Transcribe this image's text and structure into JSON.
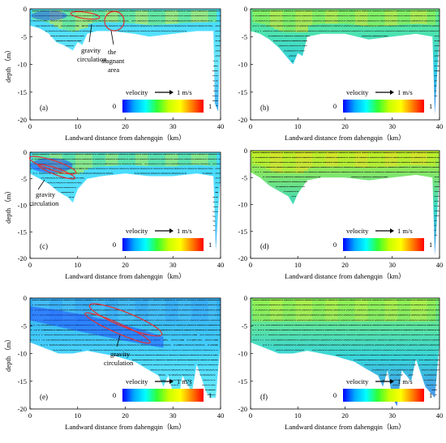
{
  "colors": {
    "colorbar_stops": [
      "#0000ff",
      "#00a8ff",
      "#00ffff",
      "#33ff33",
      "#c8ff00",
      "#ffff00",
      "#ff8000",
      "#ff0000"
    ],
    "ellipse_color": "#e53030",
    "arrow_color": "#000000"
  },
  "chart_data": [
    {
      "type": "heatmap",
      "panel": "(a)",
      "xlabel": "Landward distance from dahengqin（km）",
      "ylabel": "depth （m）",
      "xlim": [
        0,
        40
      ],
      "ylim": [
        -20,
        0
      ],
      "xticks": [
        "0",
        "10",
        "20",
        "30",
        "40"
      ],
      "yticks": [
        "0",
        "-5",
        "-10",
        "-15",
        "-20"
      ],
      "colorbar": {
        "label": "velocity",
        "min": "0",
        "max": "1",
        "arrow_label": "1 m/s"
      },
      "annotations": [
        "gravity circulation",
        "the stagnant area"
      ],
      "bottom_depth": [
        [
          0,
          -3
        ],
        [
          2,
          -3.5
        ],
        [
          4,
          -4.5
        ],
        [
          5.5,
          -6
        ],
        [
          7,
          -6.5
        ],
        [
          8,
          -7
        ],
        [
          9,
          -7.5
        ],
        [
          10,
          -6
        ],
        [
          11,
          -6.5
        ],
        [
          12,
          -4.5
        ],
        [
          14,
          -4
        ],
        [
          17,
          -4
        ],
        [
          22,
          -4.5
        ],
        [
          25,
          -5
        ],
        [
          30,
          -4.5
        ],
        [
          35,
          -4
        ],
        [
          38.5,
          -4
        ],
        [
          38.8,
          -17
        ],
        [
          39.5,
          -18.5
        ],
        [
          40,
          -3
        ]
      ]
    },
    {
      "type": "heatmap",
      "panel": "(b)",
      "xlabel": "Landward distance from dahengqin（km）",
      "ylabel": "",
      "xlim": [
        0,
        40
      ],
      "ylim": [
        -20,
        0
      ],
      "xticks": [
        "0",
        "10",
        "20",
        "30",
        "40"
      ],
      "yticks": [
        "0",
        "-5",
        "-10",
        "-15",
        "-20"
      ],
      "colorbar": {
        "label": "velocity",
        "min": "0",
        "max": "1",
        "arrow_label": "1 m/s"
      },
      "annotations": [],
      "bottom_depth": [
        [
          0,
          -4
        ],
        [
          2,
          -4.5
        ],
        [
          4,
          -5.5
        ],
        [
          6,
          -7
        ],
        [
          8,
          -9
        ],
        [
          9,
          -10
        ],
        [
          10,
          -8
        ],
        [
          11,
          -8.5
        ],
        [
          12,
          -5
        ],
        [
          15,
          -4.5
        ],
        [
          20,
          -4.5
        ],
        [
          25,
          -5.5
        ],
        [
          30,
          -5
        ],
        [
          35,
          -4.5
        ],
        [
          38.5,
          -5
        ],
        [
          39,
          -19
        ],
        [
          40,
          -4
        ]
      ]
    },
    {
      "type": "heatmap",
      "panel": "(c)",
      "xlabel": "Landward distance from dahengqin（km）",
      "ylabel": "depth （m）",
      "xlim": [
        0,
        40
      ],
      "ylim": [
        -20,
        0
      ],
      "xticks": [
        "0",
        "10",
        "20",
        "30",
        "40"
      ],
      "yticks": [
        "0",
        "-5",
        "-10",
        "-15",
        "-20"
      ],
      "colorbar": {
        "label": "velocity",
        "min": "0",
        "max": "1",
        "arrow_label": "1 m/s"
      },
      "annotations": [
        "gravity circulation"
      ],
      "bottom_depth": [
        [
          0,
          -4
        ],
        [
          2,
          -5
        ],
        [
          4,
          -6
        ],
        [
          6,
          -7.5
        ],
        [
          8,
          -8.5
        ],
        [
          9,
          -9.5
        ],
        [
          10,
          -7
        ],
        [
          12,
          -5
        ],
        [
          15,
          -4.5
        ],
        [
          20,
          -4
        ],
        [
          25,
          -4.5
        ],
        [
          30,
          -4.5
        ],
        [
          35,
          -4
        ],
        [
          38.5,
          -4.5
        ],
        [
          39,
          -18.5
        ],
        [
          40,
          -4
        ]
      ]
    },
    {
      "type": "heatmap",
      "panel": "(d)",
      "xlabel": "Landward distance from dahengqin（km）",
      "ylabel": "",
      "xlim": [
        0,
        40
      ],
      "ylim": [
        -20,
        0
      ],
      "xticks": [
        "0",
        "10",
        "20",
        "30",
        "40"
      ],
      "yticks": [
        "0",
        "-5",
        "-10",
        "-15",
        "-20"
      ],
      "colorbar": {
        "label": "velocity",
        "min": "0",
        "max": "1",
        "arrow_label": "1 m/s"
      },
      "annotations": [],
      "bottom_depth": [
        [
          0,
          -4
        ],
        [
          2,
          -5
        ],
        [
          4,
          -6.5
        ],
        [
          6,
          -7.5
        ],
        [
          8,
          -8.5
        ],
        [
          9,
          -10
        ],
        [
          10,
          -8
        ],
        [
          12,
          -5.5
        ],
        [
          15,
          -5
        ],
        [
          20,
          -5
        ],
        [
          25,
          -5.5
        ],
        [
          30,
          -5
        ],
        [
          35,
          -4.5
        ],
        [
          38.5,
          -5
        ],
        [
          39,
          -19.5
        ],
        [
          40,
          -4
        ]
      ]
    },
    {
      "type": "heatmap",
      "panel": "(e)",
      "xlabel": "Landward distance from dahengqin（km）",
      "ylabel": "depth （m）",
      "xlim": [
        0,
        40
      ],
      "ylim": [
        -20,
        0
      ],
      "xticks": [
        "0",
        "10",
        "20",
        "30",
        "40"
      ],
      "yticks": [
        "0",
        "-5",
        "-10",
        "-15",
        "-20"
      ],
      "colorbar": {
        "label": "velocity",
        "min": "0",
        "max": "1",
        "arrow_label": "1 m/s"
      },
      "annotations": [
        "gravity circulation"
      ],
      "bottom_depth": [
        [
          0,
          -8
        ],
        [
          3,
          -9
        ],
        [
          6,
          -10
        ],
        [
          9,
          -10
        ],
        [
          12,
          -9.5
        ],
        [
          15,
          -10
        ],
        [
          18,
          -10.5
        ],
        [
          20,
          -11
        ],
        [
          22,
          -11.5
        ],
        [
          25,
          -13
        ],
        [
          27,
          -14
        ],
        [
          28,
          -16
        ],
        [
          29,
          -14
        ],
        [
          30,
          -17
        ],
        [
          31,
          -19
        ],
        [
          32,
          -14
        ],
        [
          34,
          -17
        ],
        [
          35,
          -12
        ],
        [
          37,
          -17
        ],
        [
          38,
          -18
        ],
        [
          39,
          -18
        ],
        [
          40,
          -8
        ]
      ]
    },
    {
      "type": "heatmap",
      "panel": "(f)",
      "xlabel": "Landward distance from dahengqin（km）",
      "ylabel": "",
      "xlim": [
        0,
        40
      ],
      "ylim": [
        -20,
        0
      ],
      "xticks": [
        "0",
        "10",
        "20",
        "30",
        "40"
      ],
      "yticks": [
        "0",
        "-5",
        "-10",
        "-15",
        "-20"
      ],
      "colorbar": {
        "label": "velocity",
        "min": "0",
        "max": "1",
        "arrow_label": "1 m/s"
      },
      "annotations": [],
      "bottom_depth": [
        [
          0,
          -8
        ],
        [
          3,
          -9
        ],
        [
          6,
          -10
        ],
        [
          9,
          -10
        ],
        [
          12,
          -9.5
        ],
        [
          15,
          -10
        ],
        [
          18,
          -10.5
        ],
        [
          20,
          -11
        ],
        [
          22,
          -11.5
        ],
        [
          25,
          -13
        ],
        [
          27,
          -14
        ],
        [
          28,
          -16
        ],
        [
          29,
          -13
        ],
        [
          30,
          -18
        ],
        [
          31,
          -19.5
        ],
        [
          32,
          -13
        ],
        [
          34,
          -15
        ],
        [
          35,
          -11
        ],
        [
          37,
          -16
        ],
        [
          38,
          -17
        ],
        [
          39,
          -18
        ],
        [
          40,
          -8
        ]
      ]
    }
  ]
}
